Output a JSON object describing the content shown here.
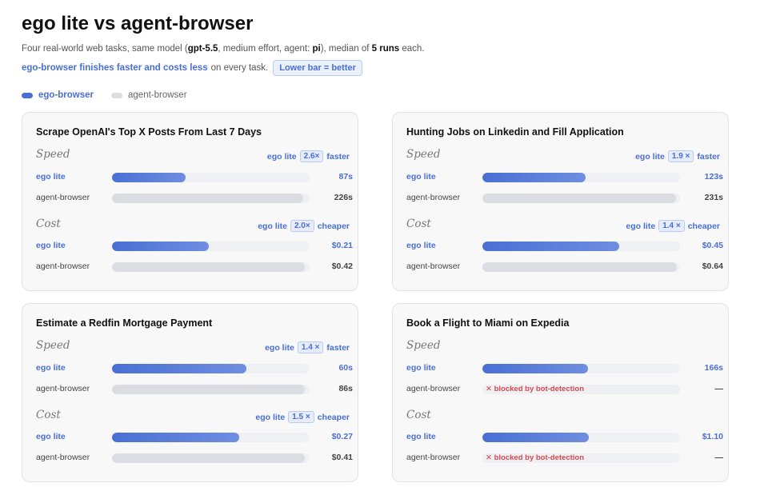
{
  "title": "ego lite vs agent-browser",
  "subtitle_1": {
    "p1": "Four real-world web tasks, same model (",
    "model": "gpt-5.5",
    "p2": ", medium effort, agent: ",
    "agent": "pi",
    "p3": "), median of ",
    "runs": "5 runs",
    "p4": " each."
  },
  "subtitle_2": {
    "highlight": "ego-browser finishes faster and costs less",
    "rest": "on every task.",
    "pill": "Lower bar = better"
  },
  "legend": {
    "ego": "ego-browser",
    "agent": "agent-browser",
    "ego_color": "#4a6fd4",
    "agent_color": "#dcdde2"
  },
  "section_labels": {
    "speed": "Speed",
    "cost": "Cost"
  },
  "row_labels": {
    "ego": "ego lite",
    "agent": "agent-browser"
  },
  "ratio_who": "ego lite",
  "ratio_words": {
    "speed": "faster",
    "cost": "cheaper"
  },
  "blocked_text": "✕ blocked by bot-detection",
  "dash": "—",
  "chart_data": [
    {
      "type": "bar",
      "title": "Scrape OpenAI's Top X Posts From Last 7 Days",
      "speed": {
        "ratio": "2.6×",
        "ego": 87,
        "agent": 226,
        "ego_label": "87s",
        "agent_label": "226s",
        "max": 234
      },
      "cost": {
        "ratio": "2.0×",
        "ego": 0.21,
        "agent": 0.42,
        "ego_label": "$0.21",
        "agent_label": "$0.42",
        "max": 0.43
      }
    },
    {
      "type": "bar",
      "title": "Hunting Jobs on Linkedin and Fill Application",
      "speed": {
        "ratio": "1.9 ×",
        "ego": 123,
        "agent": 231,
        "ego_label": "123s",
        "agent_label": "231s",
        "max": 236
      },
      "cost": {
        "ratio": "1.4 ×",
        "ego": 0.45,
        "agent": 0.64,
        "ego_label": "$0.45",
        "agent_label": "$0.64",
        "max": 0.65
      }
    },
    {
      "type": "bar",
      "title": "Estimate a Redfin Mortgage Payment",
      "speed": {
        "ratio": "1.4 ×",
        "ego": 60,
        "agent": 86,
        "ego_label": "60s",
        "agent_label": "86s",
        "max": 88
      },
      "cost": {
        "ratio": "1.5 ×",
        "ego": 0.27,
        "agent": 0.41,
        "ego_label": "$0.27",
        "agent_label": "$0.41",
        "max": 0.42
      }
    },
    {
      "type": "bar",
      "title": "Book a Flight to Miami on Expedia",
      "speed": {
        "ratio": null,
        "ego": 166,
        "agent": null,
        "ego_label": "166s",
        "agent_label": "—",
        "max": 310
      },
      "cost": {
        "ratio": null,
        "ego": 1.1,
        "agent": null,
        "ego_label": "$1.10",
        "agent_label": "—",
        "max": 2.05
      }
    }
  ]
}
